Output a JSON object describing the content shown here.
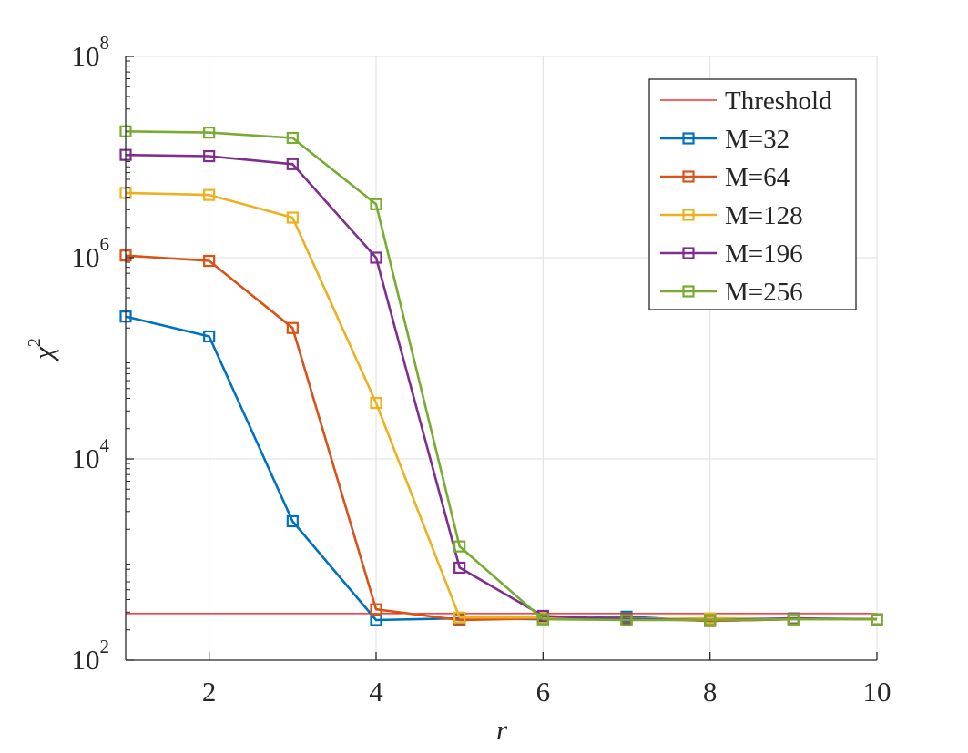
{
  "chart_data": {
    "type": "line",
    "title": "",
    "xlabel": "r",
    "ylabel": "χ",
    "ylabel_superscript": "2",
    "xlim": [
      1,
      10
    ],
    "ylim": [
      100,
      100000000
    ],
    "yscale": "log",
    "grid": true,
    "legend_position": "top-right",
    "x_ticks": [
      2,
      4,
      6,
      8,
      10
    ],
    "x_tick_labels": [
      "2",
      "4",
      "6",
      "8",
      "10"
    ],
    "y_ticks": [
      100,
      10000,
      1000000,
      100000000
    ],
    "y_tick_labels": [
      {
        "base": "10",
        "exp": "2"
      },
      {
        "base": "10",
        "exp": "4"
      },
      {
        "base": "10",
        "exp": "6"
      },
      {
        "base": "10",
        "exp": "8"
      }
    ],
    "threshold": {
      "name": "Threshold",
      "value": 290,
      "color": "#ff0000"
    },
    "x": [
      1,
      2,
      3,
      4,
      5,
      6,
      7,
      8,
      9,
      10
    ],
    "series": [
      {
        "name": "M=32",
        "color": "#0072bd",
        "values": [
          260000,
          165000,
          2400,
          250,
          260,
          255,
          270,
          245,
          255,
          255
        ]
      },
      {
        "name": "M=64",
        "color": "#d95319",
        "values": [
          1050000,
          930000,
          200000,
          320,
          250,
          260,
          260,
          245,
          255,
          255
        ]
      },
      {
        "name": "M=128",
        "color": "#edb120",
        "values": [
          4400000,
          4200000,
          2500000,
          36000,
          265,
          265,
          255,
          260,
          255,
          255
        ]
      },
      {
        "name": "M=196",
        "color": "#7e2f8e",
        "values": [
          10500000,
          10200000,
          8500000,
          1000000,
          830,
          275,
          255,
          250,
          260,
          255
        ]
      },
      {
        "name": "M=256",
        "color": "#77ac30",
        "values": [
          18000000,
          17500000,
          15500000,
          3400000,
          1350,
          255,
          250,
          250,
          255,
          255
        ]
      }
    ]
  }
}
